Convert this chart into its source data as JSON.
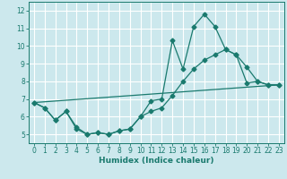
{
  "xlabel": "Humidex (Indice chaleur)",
  "bg_color": "#cce8ed",
  "grid_color": "#ffffff",
  "line_color": "#1a7a6e",
  "xlim": [
    -0.5,
    23.5
  ],
  "ylim": [
    4.5,
    12.5
  ],
  "xticks": [
    0,
    1,
    2,
    3,
    4,
    5,
    6,
    7,
    8,
    9,
    10,
    11,
    12,
    13,
    14,
    15,
    16,
    17,
    18,
    19,
    20,
    21,
    22,
    23
  ],
  "yticks": [
    5,
    6,
    7,
    8,
    9,
    10,
    11,
    12
  ],
  "line1_x": [
    0,
    1,
    2,
    3,
    4,
    5,
    6,
    7,
    8,
    9,
    10,
    11,
    12,
    13,
    14,
    15,
    16,
    17,
    18,
    19,
    20,
    21,
    22,
    23
  ],
  "line1_y": [
    6.8,
    6.5,
    5.8,
    6.3,
    5.3,
    5.0,
    5.1,
    5.0,
    5.2,
    5.3,
    6.0,
    6.9,
    7.0,
    10.3,
    8.7,
    11.1,
    11.8,
    11.1,
    9.8,
    9.5,
    7.9,
    8.0,
    7.8,
    7.8
  ],
  "line2_x": [
    0,
    1,
    2,
    3,
    4,
    5,
    6,
    7,
    8,
    9,
    10,
    11,
    12,
    13,
    14,
    15,
    16,
    17,
    18,
    19,
    20,
    21,
    22,
    23
  ],
  "line2_y": [
    6.8,
    6.5,
    5.8,
    6.3,
    5.4,
    5.0,
    5.1,
    5.0,
    5.2,
    5.3,
    6.0,
    6.3,
    6.5,
    7.2,
    8.0,
    8.7,
    9.2,
    9.5,
    9.8,
    9.5,
    8.8,
    8.0,
    7.8,
    7.8
  ],
  "line3_x": [
    0,
    23
  ],
  "line3_y": [
    6.8,
    7.8
  ],
  "tick_fontsize": 5.5,
  "xlabel_fontsize": 6.5
}
